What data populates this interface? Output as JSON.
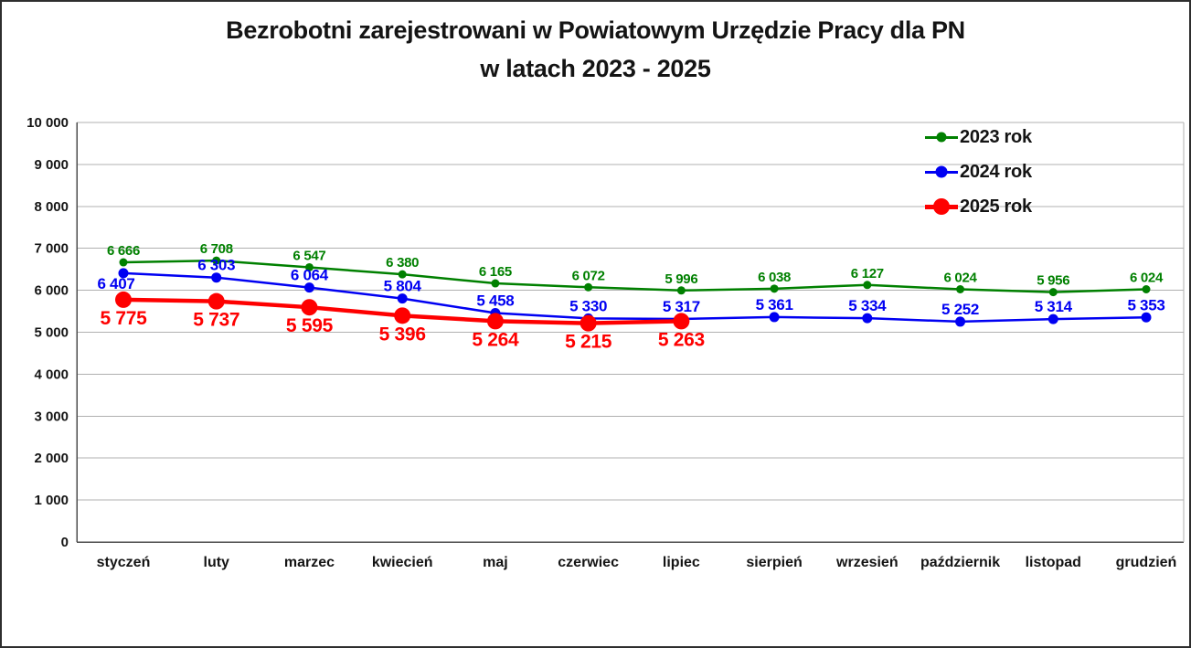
{
  "chart_data": {
    "type": "line",
    "title": "Bezrobotni zarejestrowani w Powiatowym Urzędzie Pracy dla PN",
    "subtitle": "w latach 2023 - 2025",
    "categories": [
      "styczeń",
      "luty",
      "marzec",
      "kwiecień",
      "maj",
      "czerwiec",
      "lipiec",
      "sierpień",
      "wrzesień",
      "październik",
      "listopad",
      "grudzień"
    ],
    "ylim": [
      0,
      10000
    ],
    "y_tick_step": 1000,
    "y_tick_labels": [
      "0",
      "1 000",
      "2 000",
      "3 000",
      "4 000",
      "5 000",
      "6 000",
      "7 000",
      "8 000",
      "9 000",
      "10 000"
    ],
    "grid": true,
    "grid_color": "#b0b0b0",
    "axis_color": "#4d4d4d",
    "text_color": "#141414",
    "legend_position": "top-right",
    "series": [
      {
        "name": "2023 rok",
        "color": "#008000",
        "values": [
          6666,
          6708,
          6547,
          6380,
          6165,
          6072,
          5996,
          6038,
          6127,
          6024,
          5956,
          6024
        ],
        "label_position": "above",
        "label_dy": -8,
        "label_font_size": 15,
        "marker_radius": 4.5,
        "line_width": 2.5,
        "legend_line": 3,
        "legend_dot": 11,
        "label_overrides": {}
      },
      {
        "name": "2024 rok",
        "color": "#0000f2",
        "values": [
          6407,
          6303,
          6064,
          5804,
          5458,
          5330,
          5317,
          5361,
          5334,
          5252,
          5314,
          5353
        ],
        "label_position": "above",
        "label_dy": -8,
        "label_font_size": 17,
        "marker_radius": 5.5,
        "line_width": 2.5,
        "legend_line": 3,
        "legend_dot": 13,
        "label_overrides": {
          "0": {
            "dx": -8,
            "dy": 17
          }
        }
      },
      {
        "name": "2025 rok",
        "color": "#fe0000",
        "values": [
          5775,
          5737,
          5595,
          5396,
          5264,
          5215,
          5263
        ],
        "label_position": "below",
        "label_dy": 27,
        "label_font_size": 21,
        "marker_radius": 9,
        "line_width": 4.5,
        "legend_line": 5,
        "legend_dot": 18,
        "label_overrides": {}
      }
    ]
  }
}
